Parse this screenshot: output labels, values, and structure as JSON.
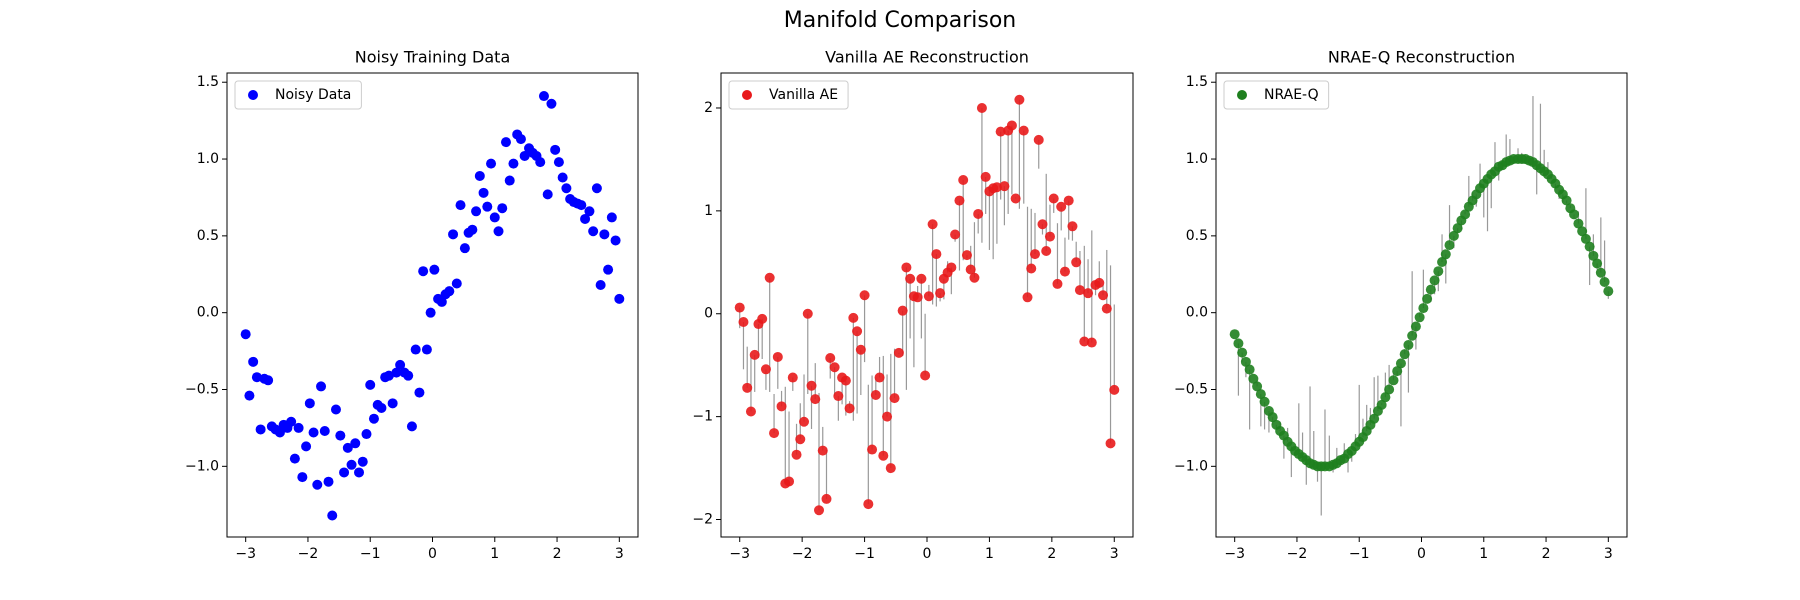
{
  "title": "Manifold Comparison",
  "chart_data": [
    {
      "type": "scatter",
      "title": "Noisy Training Data",
      "legend": "upper left",
      "x": [
        -3.0,
        -2.94,
        -2.88,
        -2.82,
        -2.76,
        -2.7,
        -2.64,
        -2.58,
        -2.52,
        -2.45,
        -2.39,
        -2.33,
        -2.27,
        -2.21,
        -2.15,
        -2.09,
        -2.03,
        -1.97,
        -1.91,
        -1.85,
        -1.79,
        -1.73,
        -1.67,
        -1.61,
        -1.55,
        -1.48,
        -1.42,
        -1.36,
        -1.3,
        -1.24,
        -1.18,
        -1.12,
        -1.06,
        -1.0,
        -0.94,
        -0.88,
        -0.82,
        -0.76,
        -0.7,
        -0.64,
        -0.58,
        -0.52,
        -0.45,
        -0.39,
        -0.33,
        -0.27,
        -0.21,
        -0.15,
        -0.09,
        -0.03,
        0.03,
        0.09,
        0.15,
        0.21,
        0.27,
        0.33,
        0.39,
        0.45,
        0.52,
        0.58,
        0.64,
        0.7,
        0.76,
        0.82,
        0.88,
        0.94,
        1.0,
        1.06,
        1.12,
        1.18,
        1.24,
        1.3,
        1.36,
        1.42,
        1.48,
        1.55,
        1.61,
        1.67,
        1.73,
        1.79,
        1.85,
        1.91,
        1.97,
        2.03,
        2.09,
        2.15,
        2.21,
        2.27,
        2.33,
        2.39,
        2.45,
        2.52,
        2.58,
        2.64,
        2.7,
        2.76,
        2.82,
        2.88,
        2.94,
        3.0
      ],
      "series": [
        {
          "name": "Noisy Data",
          "color": "#0000ff",
          "values": [
            -0.14,
            -0.54,
            -0.32,
            -0.42,
            -0.76,
            -0.43,
            -0.44,
            -0.74,
            -0.76,
            -0.78,
            -0.73,
            -0.75,
            -0.71,
            -0.95,
            -0.75,
            -1.07,
            -0.87,
            -0.59,
            -0.78,
            -1.12,
            -0.48,
            -0.77,
            -1.1,
            -1.32,
            -0.63,
            -0.8,
            -1.04,
            -0.88,
            -0.99,
            -0.85,
            -1.04,
            -0.97,
            -0.79,
            -0.47,
            -0.69,
            -0.6,
            -0.62,
            -0.42,
            -0.41,
            -0.59,
            -0.39,
            -0.34,
            -0.39,
            -0.41,
            -0.74,
            -0.24,
            -0.52,
            0.27,
            -0.24,
            0.0,
            0.28,
            0.09,
            0.07,
            0.12,
            0.14,
            0.51,
            0.19,
            0.7,
            0.42,
            0.52,
            0.54,
            0.66,
            0.89,
            0.78,
            0.69,
            0.97,
            0.62,
            0.53,
            0.68,
            1.11,
            0.86,
            0.97,
            1.16,
            1.13,
            1.02,
            1.07,
            1.04,
            1.02,
            0.98,
            1.41,
            0.77,
            1.36,
            1.06,
            0.98,
            0.88,
            0.81,
            0.74,
            0.72,
            0.71,
            0.7,
            0.61,
            0.66,
            0.53,
            0.81,
            0.18,
            0.51,
            0.28,
            0.62,
            0.47,
            0.09
          ]
        }
      ],
      "xlim": [
        -3.3,
        3.3
      ],
      "xticks": [
        {
          "value": -3,
          "label": "−3"
        },
        {
          "value": -2,
          "label": "−2"
        },
        {
          "value": -1,
          "label": "−1"
        },
        0,
        1,
        2,
        3
      ],
      "ylim": [
        -1.46,
        1.56
      ],
      "yticks": [
        {
          "value": -1,
          "label": "−1.0"
        },
        {
          "value": -0.5,
          "label": "−0.5"
        },
        {
          "value": 0,
          "label": "0.0"
        },
        0.5,
        {
          "value": 1,
          "label": "1.0"
        },
        1.5
      ]
    },
    {
      "type": "scatter",
      "title": "Vanilla AE Reconstruction",
      "legend": "upper left",
      "residuals": true,
      "x": [
        -3.0,
        -2.94,
        -2.88,
        -2.82,
        -2.76,
        -2.7,
        -2.64,
        -2.58,
        -2.52,
        -2.45,
        -2.39,
        -2.33,
        -2.27,
        -2.21,
        -2.15,
        -2.09,
        -2.03,
        -1.97,
        -1.91,
        -1.85,
        -1.79,
        -1.73,
        -1.67,
        -1.61,
        -1.55,
        -1.48,
        -1.42,
        -1.36,
        -1.3,
        -1.24,
        -1.18,
        -1.12,
        -1.06,
        -1.0,
        -0.94,
        -0.88,
        -0.82,
        -0.76,
        -0.7,
        -0.64,
        -0.58,
        -0.52,
        -0.45,
        -0.39,
        -0.33,
        -0.27,
        -0.21,
        -0.15,
        -0.09,
        -0.03,
        0.03,
        0.09,
        0.15,
        0.21,
        0.27,
        0.33,
        0.39,
        0.45,
        0.52,
        0.58,
        0.64,
        0.7,
        0.76,
        0.82,
        0.88,
        0.94,
        1.0,
        1.06,
        1.12,
        1.18,
        1.24,
        1.3,
        1.36,
        1.42,
        1.48,
        1.55,
        1.61,
        1.67,
        1.73,
        1.79,
        1.85,
        1.91,
        1.97,
        2.03,
        2.09,
        2.15,
        2.21,
        2.27,
        2.33,
        2.39,
        2.45,
        2.52,
        2.58,
        2.64,
        2.7,
        2.76,
        2.82,
        2.88,
        2.94,
        3.0
      ],
      "series": [
        {
          "name": "Vanilla AE",
          "color": "#e8191b",
          "values": [
            0.06,
            -0.08,
            -0.72,
            -0.95,
            -0.4,
            -0.1,
            -0.05,
            -0.54,
            0.35,
            -1.16,
            -0.42,
            -0.9,
            -1.65,
            -1.63,
            -0.62,
            -1.37,
            -1.22,
            -1.05,
            0.0,
            -0.7,
            -0.83,
            -1.91,
            -1.33,
            -1.8,
            -0.43,
            -0.52,
            -0.8,
            -0.62,
            -0.65,
            -0.92,
            -0.04,
            -0.17,
            -0.35,
            0.18,
            -1.85,
            -1.32,
            -0.79,
            -0.62,
            -1.38,
            -1.0,
            -1.5,
            -0.82,
            -0.38,
            0.03,
            0.45,
            0.34,
            0.17,
            0.16,
            0.34,
            -0.6,
            0.17,
            0.87,
            0.58,
            0.2,
            0.34,
            0.4,
            0.45,
            0.77,
            1.1,
            1.3,
            0.57,
            0.43,
            0.35,
            0.97,
            2.0,
            1.33,
            1.19,
            1.22,
            1.23,
            1.77,
            1.24,
            1.78,
            1.83,
            1.12,
            2.08,
            1.78,
            0.16,
            0.44,
            0.58,
            1.69,
            0.87,
            0.61,
            0.75,
            1.12,
            0.29,
            1.04,
            0.41,
            1.1,
            0.85,
            0.5,
            0.23,
            -0.27,
            0.2,
            -0.28,
            0.28,
            0.3,
            0.18,
            0.05,
            -1.26,
            -0.74
          ]
        }
      ],
      "xlim": [
        -3.3,
        3.3
      ],
      "xticks": [
        {
          "value": -3,
          "label": "−3"
        },
        {
          "value": -2,
          "label": "−2"
        },
        {
          "value": -1,
          "label": "−1"
        },
        0,
        1,
        2,
        3
      ],
      "ylim": [
        -2.17,
        2.34
      ],
      "yticks": [
        {
          "value": -2,
          "label": "−2"
        },
        {
          "value": -1,
          "label": "−1"
        },
        0,
        1,
        2
      ]
    },
    {
      "type": "scatter",
      "title": "NRAE-Q Reconstruction",
      "legend": "upper left",
      "residuals": true,
      "x": [
        -3.0,
        -2.94,
        -2.88,
        -2.82,
        -2.76,
        -2.7,
        -2.64,
        -2.58,
        -2.52,
        -2.45,
        -2.39,
        -2.33,
        -2.27,
        -2.21,
        -2.15,
        -2.09,
        -2.03,
        -1.97,
        -1.91,
        -1.85,
        -1.79,
        -1.73,
        -1.67,
        -1.61,
        -1.55,
        -1.48,
        -1.42,
        -1.36,
        -1.3,
        -1.24,
        -1.18,
        -1.12,
        -1.06,
        -1.0,
        -0.94,
        -0.88,
        -0.82,
        -0.76,
        -0.7,
        -0.64,
        -0.58,
        -0.52,
        -0.45,
        -0.39,
        -0.33,
        -0.27,
        -0.21,
        -0.15,
        -0.09,
        -0.03,
        0.03,
        0.09,
        0.15,
        0.21,
        0.27,
        0.33,
        0.39,
        0.45,
        0.52,
        0.58,
        0.64,
        0.7,
        0.76,
        0.82,
        0.88,
        0.94,
        1.0,
        1.06,
        1.12,
        1.18,
        1.24,
        1.3,
        1.36,
        1.42,
        1.48,
        1.55,
        1.61,
        1.67,
        1.73,
        1.79,
        1.85,
        1.91,
        1.97,
        2.03,
        2.09,
        2.15,
        2.21,
        2.27,
        2.33,
        2.39,
        2.45,
        2.52,
        2.58,
        2.64,
        2.7,
        2.76,
        2.82,
        2.88,
        2.94,
        3.0
      ],
      "series": [
        {
          "name": "NRAE-Q",
          "color": "#1e7f1e",
          "values": [
            -0.14,
            -0.2,
            -0.26,
            -0.32,
            -0.37,
            -0.43,
            -0.48,
            -0.53,
            -0.58,
            -0.64,
            -0.68,
            -0.73,
            -0.77,
            -0.8,
            -0.84,
            -0.87,
            -0.9,
            -0.92,
            -0.94,
            -0.96,
            -0.98,
            -0.99,
            -1.0,
            -1.0,
            -1.0,
            -1.0,
            -0.99,
            -0.98,
            -0.96,
            -0.95,
            -0.92,
            -0.9,
            -0.87,
            -0.84,
            -0.81,
            -0.77,
            -0.73,
            -0.69,
            -0.64,
            -0.6,
            -0.55,
            -0.5,
            -0.44,
            -0.38,
            -0.33,
            -0.27,
            -0.21,
            -0.15,
            -0.09,
            -0.03,
            0.03,
            0.09,
            0.15,
            0.21,
            0.27,
            0.33,
            0.38,
            0.44,
            0.5,
            0.55,
            0.6,
            0.64,
            0.69,
            0.73,
            0.77,
            0.81,
            0.84,
            0.87,
            0.9,
            0.92,
            0.95,
            0.96,
            0.98,
            0.99,
            1.0,
            1.0,
            1.0,
            1.0,
            0.99,
            0.98,
            0.96,
            0.94,
            0.92,
            0.9,
            0.87,
            0.84,
            0.8,
            0.77,
            0.73,
            0.68,
            0.64,
            0.58,
            0.53,
            0.48,
            0.43,
            0.37,
            0.32,
            0.26,
            0.2,
            0.14
          ]
        }
      ],
      "xlim": [
        -3.3,
        3.3
      ],
      "xticks": [
        {
          "value": -3,
          "label": "−3"
        },
        {
          "value": -2,
          "label": "−2"
        },
        {
          "value": -1,
          "label": "−1"
        },
        0,
        1,
        2,
        3
      ],
      "ylim": [
        -1.46,
        1.56
      ],
      "yticks": [
        {
          "value": -1,
          "label": "−1.0"
        },
        {
          "value": -0.5,
          "label": "−0.5"
        },
        {
          "value": 0,
          "label": "0.0"
        },
        0.5,
        {
          "value": 1,
          "label": "1.0"
        },
        1.5
      ]
    }
  ]
}
